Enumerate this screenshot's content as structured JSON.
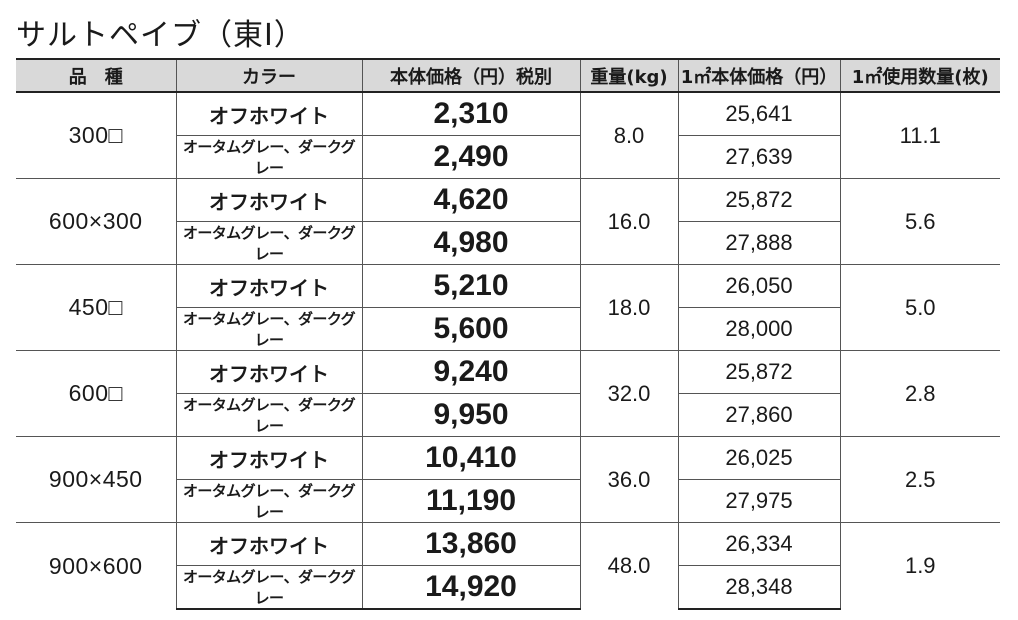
{
  "title": "サルトペイブ（東Ⅰ）",
  "headers": {
    "product": "品　種",
    "color": "カラー",
    "price": "本体価格（円）税別",
    "weight": "重量(kg)",
    "unit_price": "1㎡本体価格（円）",
    "qty": "1㎡使用数量(枚)"
  },
  "rows": [
    {
      "product": "300□",
      "weight": "8.0",
      "qty": "11.1",
      "variants": [
        {
          "color": "オフホワイト",
          "price": "2,310",
          "unit_price": "25,641"
        },
        {
          "color": "オータムグレー、ダークグレー",
          "price": "2,490",
          "unit_price": "27,639"
        }
      ]
    },
    {
      "product": "600×300",
      "weight": "16.0",
      "qty": "5.6",
      "variants": [
        {
          "color": "オフホワイト",
          "price": "4,620",
          "unit_price": "25,872"
        },
        {
          "color": "オータムグレー、ダークグレー",
          "price": "4,980",
          "unit_price": "27,888"
        }
      ]
    },
    {
      "product": "450□",
      "weight": "18.0",
      "qty": "5.0",
      "variants": [
        {
          "color": "オフホワイト",
          "price": "5,210",
          "unit_price": "26,050"
        },
        {
          "color": "オータムグレー、ダークグレー",
          "price": "5,600",
          "unit_price": "28,000"
        }
      ]
    },
    {
      "product": "600□",
      "weight": "32.0",
      "qty": "2.8",
      "variants": [
        {
          "color": "オフホワイト",
          "price": "9,240",
          "unit_price": "25,872"
        },
        {
          "color": "オータムグレー、ダークグレー",
          "price": "9,950",
          "unit_price": "27,860"
        }
      ]
    },
    {
      "product": "900×450",
      "weight": "36.0",
      "qty": "2.5",
      "variants": [
        {
          "color": "オフホワイト",
          "price": "10,410",
          "unit_price": "26,025"
        },
        {
          "color": "オータムグレー、ダークグレー",
          "price": "11,190",
          "unit_price": "27,975"
        }
      ]
    },
    {
      "product": "900×600",
      "weight": "48.0",
      "qty": "1.9",
      "variants": [
        {
          "color": "オフホワイト",
          "price": "13,860",
          "unit_price": "26,334"
        },
        {
          "color": "オータムグレー、ダークグレー",
          "price": "14,920",
          "unit_price": "28,348"
        }
      ]
    }
  ]
}
